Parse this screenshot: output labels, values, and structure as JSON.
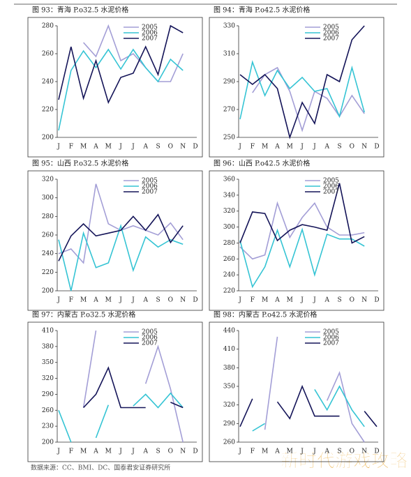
{
  "chart_data": [
    {
      "type": "line",
      "title": "图 93：青海 P.o32.5 水泥价格",
      "categories": [
        "J",
        "F",
        "M",
        "A",
        "M",
        "J",
        "J",
        "A",
        "S",
        "O",
        "N",
        "D"
      ],
      "ylim": [
        200,
        280
      ],
      "yticks": [
        200,
        220,
        240,
        260,
        280
      ],
      "series": [
        {
          "name": "2005",
          "color": "#a39ed6",
          "values": [
            null,
            null,
            268,
            258,
            280,
            255,
            260,
            250,
            240,
            240,
            260,
            null
          ]
        },
        {
          "name": "2006",
          "color": "#35c4d4",
          "values": [
            205,
            248,
            262,
            250,
            263,
            249,
            263,
            250,
            240,
            256,
            248,
            null
          ]
        },
        {
          "name": "2007",
          "color": "#141458",
          "values": [
            227,
            265,
            228,
            255,
            225,
            243,
            246,
            265,
            245,
            280,
            275,
            null
          ]
        }
      ]
    },
    {
      "type": "line",
      "title": "图 94：青海 P.o42.5 水泥价格",
      "categories": [
        "J",
        "F",
        "M",
        "A",
        "M",
        "J",
        "J",
        "A",
        "S",
        "O",
        "N",
        "D"
      ],
      "ylim": [
        250,
        330
      ],
      "yticks": [
        250,
        270,
        290,
        310,
        330
      ],
      "series": [
        {
          "name": "2005",
          "color": "#a39ed6",
          "values": [
            null,
            282,
            295,
            300,
            283,
            255,
            283,
            278,
            265,
            280,
            267,
            null
          ]
        },
        {
          "name": "2006",
          "color": "#35c4d4",
          "values": [
            263,
            304,
            280,
            298,
            285,
            293,
            283,
            285,
            265,
            300,
            268,
            null
          ]
        },
        {
          "name": "2007",
          "color": "#141458",
          "values": [
            295,
            288,
            295,
            285,
            250,
            275,
            260,
            295,
            290,
            320,
            330,
            null
          ]
        }
      ]
    },
    {
      "type": "line",
      "title": "图 95：山西 P.o32.5 水泥价格",
      "categories": [
        "J",
        "F",
        "M",
        "A",
        "M",
        "J",
        "J",
        "A",
        "S",
        "O",
        "N",
        "D"
      ],
      "ylim": [
        200,
        320
      ],
      "yticks": [
        200,
        220,
        240,
        260,
        280,
        300,
        320
      ],
      "series": [
        {
          "name": "2005",
          "color": "#a39ed6",
          "values": [
            240,
            245,
            230,
            315,
            272,
            265,
            270,
            265,
            260,
            273,
            255,
            null
          ]
        },
        {
          "name": "2006",
          "color": "#35c4d4",
          "values": [
            255,
            200,
            262,
            225,
            230,
            270,
            222,
            258,
            247,
            255,
            250,
            null
          ]
        },
        {
          "name": "2007",
          "color": "#141458",
          "values": [
            232,
            259,
            272,
            259,
            262,
            265,
            280,
            265,
            282,
            252,
            270,
            null
          ]
        }
      ]
    },
    {
      "type": "line",
      "title": "图 96：山西 P.o42.5 水泥价格",
      "categories": [
        "J",
        "F",
        "M",
        "A",
        "M",
        "J",
        "J",
        "A",
        "S",
        "O",
        "N",
        "D"
      ],
      "ylim": [
        220,
        360
      ],
      "yticks": [
        220,
        240,
        260,
        280,
        300,
        320,
        340,
        360
      ],
      "series": [
        {
          "name": "2005",
          "color": "#a39ed6",
          "values": [
            275,
            260,
            265,
            330,
            287,
            312,
            330,
            300,
            290,
            290,
            293,
            null
          ]
        },
        {
          "name": "2006",
          "color": "#35c4d4",
          "values": [
            283,
            225,
            250,
            296,
            250,
            297,
            240,
            291,
            285,
            285,
            276,
            null
          ]
        },
        {
          "name": "2007",
          "color": "#141458",
          "values": [
            280,
            319,
            317,
            283,
            296,
            303,
            300,
            296,
            355,
            280,
            288,
            null
          ]
        }
      ]
    },
    {
      "type": "line",
      "title": "图 97：内蒙古 P.o32.5 水泥价格",
      "categories": [
        "J",
        "F",
        "M",
        "A",
        "M",
        "J",
        "J",
        "A",
        "S",
        "O",
        "N",
        "D"
      ],
      "ylim": [
        200,
        410
      ],
      "yticks": [
        200,
        230,
        260,
        290,
        320,
        350,
        380,
        410
      ],
      "series": [
        {
          "name": "2005",
          "color": "#a39ed6",
          "values": [
            null,
            null,
            265,
            410,
            null,
            null,
            null,
            310,
            380,
            300,
            200,
            null
          ]
        },
        {
          "name": "2006",
          "color": "#35c4d4",
          "values": [
            260,
            200,
            null,
            208,
            270,
            null,
            268,
            290,
            265,
            292,
            265,
            null
          ]
        },
        {
          "name": "2007",
          "color": "#141458",
          "values": [
            null,
            null,
            265,
            290,
            340,
            265,
            265,
            265,
            null,
            275,
            265,
            null
          ]
        }
      ]
    },
    {
      "type": "line",
      "title": "图 98：内蒙古 P.o42.5 水泥价格",
      "categories": [
        "J",
        "F",
        "M",
        "A",
        "M",
        "J",
        "J",
        "A",
        "S",
        "O",
        "N",
        "D"
      ],
      "ylim": [
        260,
        440
      ],
      "yticks": [
        260,
        290,
        320,
        350,
        380,
        410,
        440
      ],
      "series": [
        {
          "name": "2005",
          "color": "#a39ed6",
          "values": [
            null,
            null,
            280,
            430,
            null,
            null,
            null,
            327,
            372,
            290,
            260,
            null
          ]
        },
        {
          "name": "2006",
          "color": "#35c4d4",
          "values": [
            null,
            278,
            290,
            null,
            null,
            null,
            345,
            312,
            350,
            312,
            285,
            null
          ]
        },
        {
          "name": "2007",
          "color": "#141458",
          "values": [
            285,
            330,
            null,
            325,
            298,
            350,
            302,
            302,
            302,
            null,
            310,
            285
          ]
        }
      ]
    }
  ],
  "footer": {
    "source": "数据来源：CC、BMI、DC、国泰君安证券研究所",
    "watermark": "新时代游戏攻略"
  }
}
